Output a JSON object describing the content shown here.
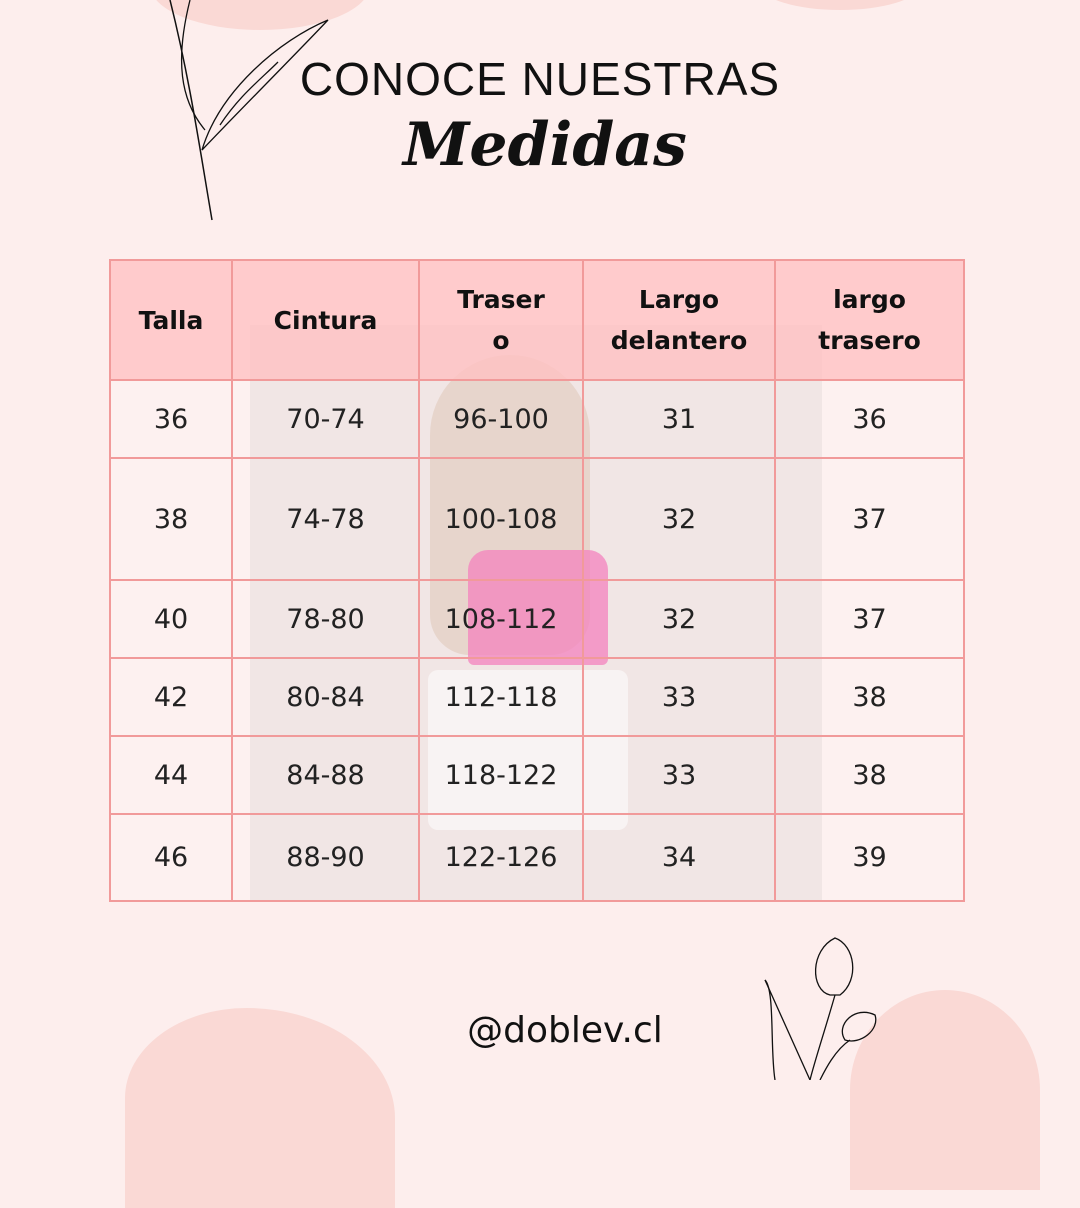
{
  "header": {
    "line1": "CONOCE NUESTRAS",
    "line2": "Medidas"
  },
  "table": {
    "headers": [
      "Talla",
      "Cintura",
      "Traser o",
      "Largo delantero",
      "largo trasero"
    ],
    "rows": [
      [
        "36",
        "70-74",
        "96-100",
        "31",
        "36"
      ],
      [
        "38",
        "74-78",
        "100-108",
        "32",
        "37"
      ],
      [
        "40",
        "78-80",
        "108-112",
        "32",
        "37"
      ],
      [
        "42",
        "80-84",
        "112-118",
        "33",
        "38"
      ],
      [
        "44",
        "84-88",
        "118-122",
        "33",
        "38"
      ],
      [
        "46",
        "88-90",
        "122-126",
        "34",
        "39"
      ]
    ]
  },
  "footer": {
    "handle": "@doblev.cl"
  },
  "colors": {
    "background": "#fdeeed",
    "header_fill": "#ffc4c6",
    "border": "#f19a9a",
    "blob": "#fad9d5"
  }
}
